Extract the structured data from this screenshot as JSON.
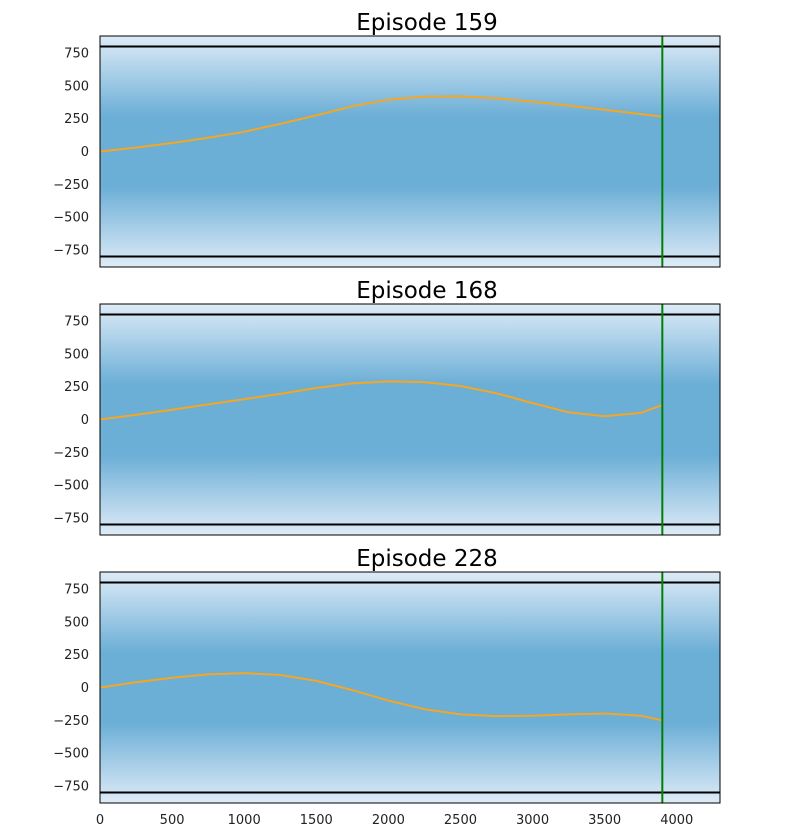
{
  "chart_data": [
    {
      "type": "line",
      "title": "Episode 159",
      "xlim": [
        0,
        4300
      ],
      "ylim": [
        -880,
        880
      ],
      "yticks": [
        750,
        500,
        250,
        0,
        -250,
        -500,
        -750
      ],
      "ytick_labels": [
        "750",
        "500",
        "250",
        "0",
        "−250",
        "−500",
        "−750"
      ],
      "show_xticks": false,
      "boundaries": [
        800,
        -800
      ],
      "goal_x": 3900,
      "colors": {
        "trajectory": "#f5a623",
        "boundary": "#000000",
        "goal": "#008000",
        "band_center": "#6baed6",
        "band_edge": "#deebf7"
      },
      "series": [
        {
          "x": [
            0,
            250,
            500,
            750,
            1000,
            1250,
            1500,
            1750,
            2000,
            2250,
            2500,
            2750,
            3000,
            3250,
            3500,
            3750,
            3900
          ],
          "y": [
            0,
            30,
            65,
            105,
            150,
            210,
            275,
            345,
            395,
            418,
            420,
            405,
            380,
            350,
            318,
            285,
            265
          ]
        }
      ]
    },
    {
      "type": "line",
      "title": "Episode 168",
      "xlim": [
        0,
        4300
      ],
      "ylim": [
        -880,
        880
      ],
      "yticks": [
        750,
        500,
        250,
        0,
        -250,
        -500,
        -750
      ],
      "ytick_labels": [
        "750",
        "500",
        "250",
        "0",
        "−250",
        "−500",
        "−750"
      ],
      "show_xticks": false,
      "boundaries": [
        800,
        -800
      ],
      "goal_x": 3900,
      "colors": {
        "trajectory": "#f5a623",
        "boundary": "#000000",
        "goal": "#008000",
        "band_center": "#6baed6",
        "band_edge": "#deebf7"
      },
      "series": [
        {
          "x": [
            0,
            250,
            500,
            750,
            1000,
            1250,
            1500,
            1750,
            2000,
            2250,
            2500,
            2750,
            3000,
            3250,
            3500,
            3750,
            3900
          ],
          "y": [
            0,
            35,
            75,
            115,
            155,
            195,
            240,
            275,
            290,
            285,
            255,
            200,
            125,
            55,
            25,
            50,
            110
          ]
        }
      ]
    },
    {
      "type": "line",
      "title": "Episode 228",
      "xlim": [
        0,
        4300
      ],
      "ylim": [
        -880,
        880
      ],
      "yticks": [
        750,
        500,
        250,
        0,
        -250,
        -500,
        -750
      ],
      "ytick_labels": [
        "750",
        "500",
        "250",
        "0",
        "−250",
        "−500",
        "−750"
      ],
      "show_xticks": true,
      "xticks": [
        0,
        500,
        1000,
        1500,
        2000,
        2500,
        3000,
        3500,
        4000
      ],
      "xtick_labels": [
        "0",
        "500",
        "1000",
        "1500",
        "2000",
        "2500",
        "3000",
        "3500",
        "4000"
      ],
      "boundaries": [
        800,
        -800
      ],
      "goal_x": 3900,
      "colors": {
        "trajectory": "#f5a623",
        "boundary": "#000000",
        "goal": "#008000",
        "band_center": "#6baed6",
        "band_edge": "#deebf7"
      },
      "series": [
        {
          "x": [
            0,
            250,
            500,
            750,
            1000,
            1250,
            1500,
            1750,
            2000,
            2250,
            2500,
            2750,
            3000,
            3250,
            3500,
            3750,
            3900
          ],
          "y": [
            0,
            40,
            75,
            100,
            110,
            95,
            50,
            -20,
            -100,
            -165,
            -205,
            -218,
            -215,
            -205,
            -198,
            -215,
            -250
          ]
        }
      ]
    }
  ]
}
